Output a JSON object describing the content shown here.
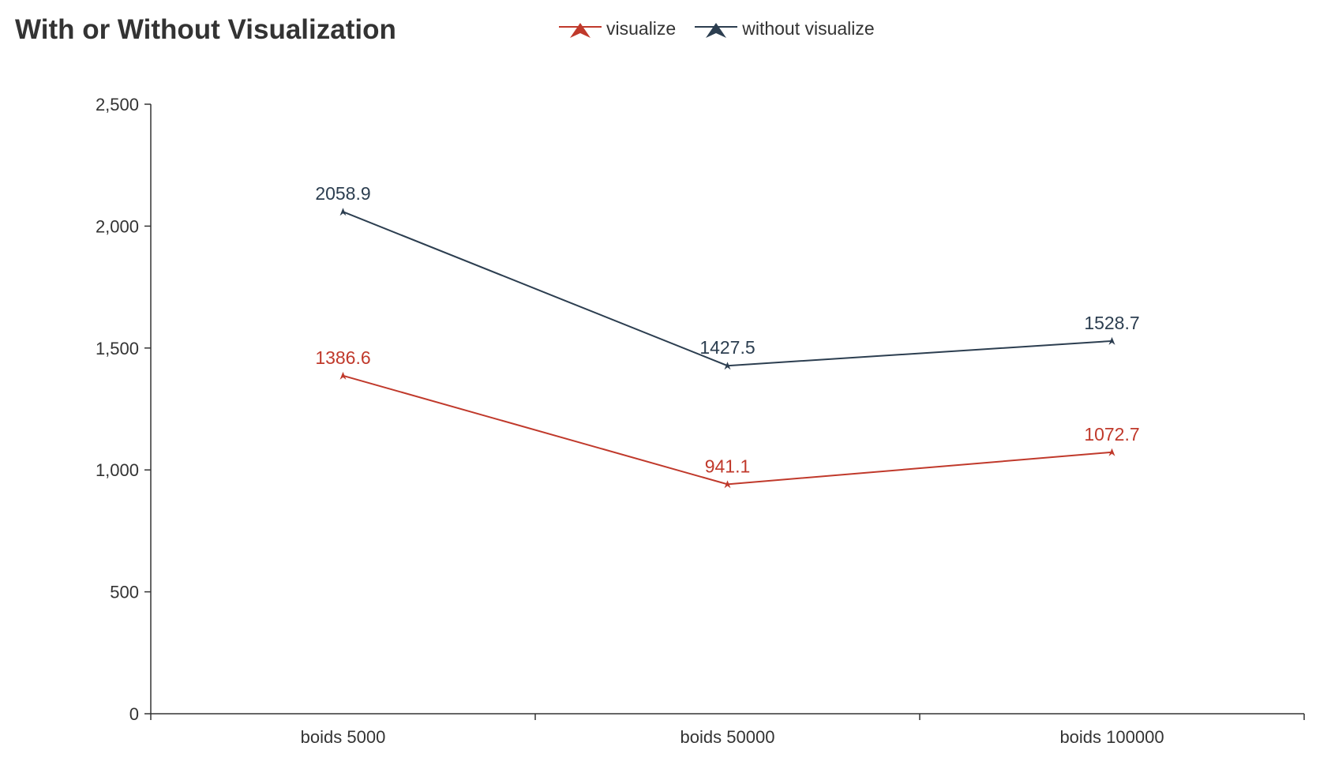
{
  "chart_data": {
    "type": "line",
    "title": "With or Without Visualization",
    "categories": [
      "boids 5000",
      "boids 50000",
      "boids 100000"
    ],
    "series": [
      {
        "name": "visualize",
        "color": "#c0392b",
        "values": [
          1386.6,
          941.1,
          1072.7
        ],
        "labels": [
          "1386.6",
          "941.1",
          "1072.7"
        ]
      },
      {
        "name": "without visualize",
        "color": "#2c3e50",
        "values": [
          2058.9,
          1427.5,
          1528.7
        ],
        "labels": [
          "2058.9",
          "1427.5",
          "1528.7"
        ]
      }
    ],
    "ylim": [
      0,
      2500
    ],
    "yticks": [
      0,
      500,
      1000,
      1500,
      2000,
      2500
    ],
    "ytick_labels": [
      "0",
      "500",
      "1,000",
      "1,500",
      "2,000",
      "2,500"
    ],
    "xlabel": "",
    "ylabel": "",
    "grid": false,
    "legend_position": "top-center",
    "marker": "triangle"
  }
}
